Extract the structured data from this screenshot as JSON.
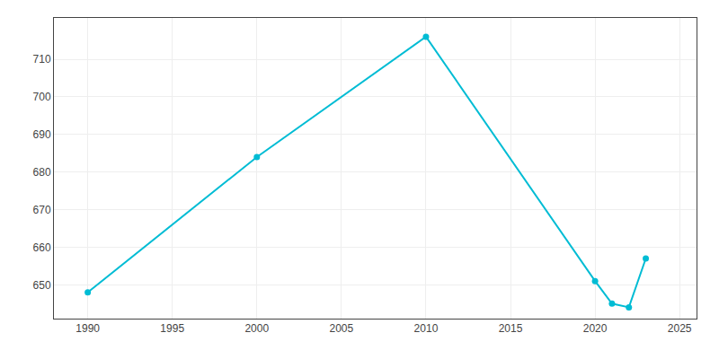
{
  "chart_data": {
    "type": "line",
    "x": [
      1990,
      2000,
      2010,
      2020,
      2021,
      2022,
      2023
    ],
    "values": [
      648,
      684,
      716,
      651,
      645,
      644,
      657
    ],
    "color": "#00BCD4",
    "marker": "circle",
    "xlim": [
      1988,
      2026
    ],
    "ylim": [
      641,
      721
    ],
    "xticks": [
      1990,
      1995,
      2000,
      2005,
      2010,
      2015,
      2020,
      2025
    ],
    "yticks": [
      650,
      660,
      670,
      680,
      690,
      700,
      710
    ],
    "grid": true
  }
}
